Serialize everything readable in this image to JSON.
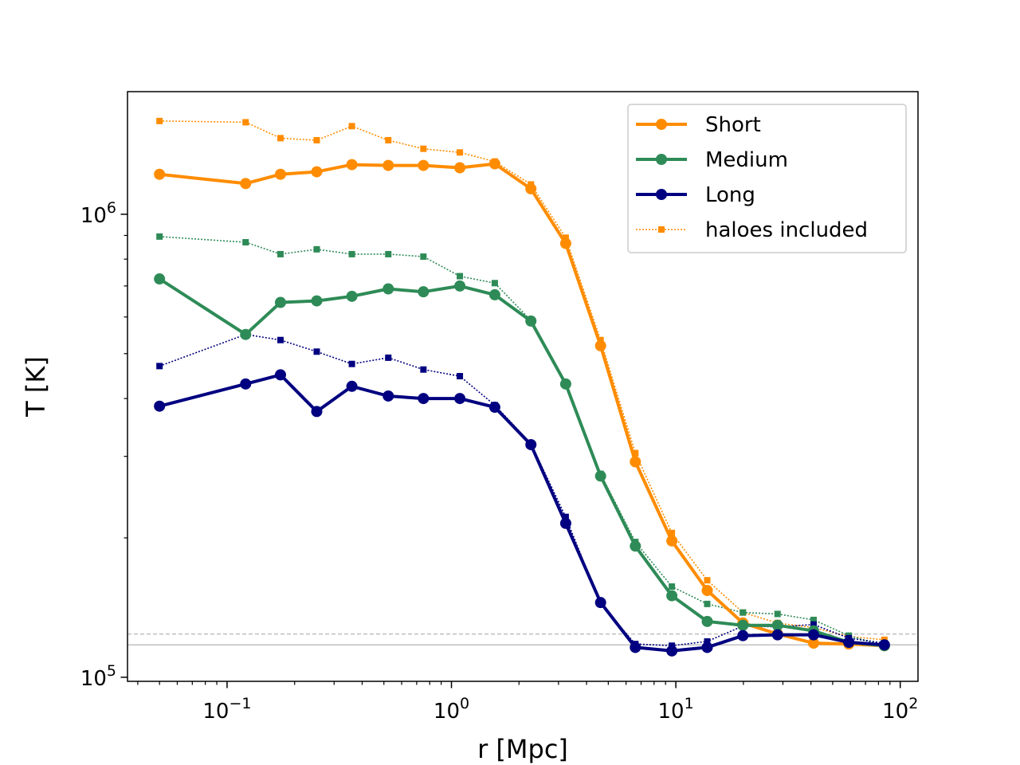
{
  "chart_data": {
    "type": "line",
    "title": "",
    "xlabel": "r [Mpc]",
    "ylabel": "T [K]",
    "xscale": "log",
    "yscale": "log",
    "xlim": [
      0.036,
      120
    ],
    "ylim": [
      98000,
      1840000
    ],
    "x_ticks": [
      {
        "value": 0.1,
        "base": "10",
        "exp": "−1"
      },
      {
        "value": 1,
        "base": "10",
        "exp": "0"
      },
      {
        "value": 10,
        "base": "10",
        "exp": "1"
      },
      {
        "value": 100,
        "base": "10",
        "exp": "2"
      }
    ],
    "y_ticks": [
      {
        "value": 100000,
        "base": "10",
        "exp": "5"
      },
      {
        "value": 1000000,
        "base": "10",
        "exp": "6"
      }
    ],
    "x": [
      0.05,
      0.121,
      0.173,
      0.251,
      0.36,
      0.523,
      0.75,
      1.09,
      1.56,
      2.26,
      3.23,
      4.62,
      6.6,
      9.6,
      13.8,
      19.9,
      28.4,
      41.1,
      59,
      85
    ],
    "series": [
      {
        "name": "Short",
        "style": "solid",
        "color": "#ff8c00",
        "values": [
          1220000,
          1165000,
          1220000,
          1235000,
          1280000,
          1275000,
          1275000,
          1260000,
          1285000,
          1135000,
          865000,
          520000,
          292000,
          197000,
          154000,
          131000,
          124000,
          118500,
          118000,
          117000
        ]
      },
      {
        "name": "Medium",
        "style": "solid",
        "color": "#2e8b57",
        "values": [
          725000,
          550000,
          645000,
          650000,
          665000,
          690000,
          680000,
          700000,
          670000,
          588000,
          430000,
          272000,
          192000,
          150000,
          132000,
          129500,
          129500,
          126000,
          119000,
          117000
        ]
      },
      {
        "name": "Long",
        "style": "solid",
        "color": "#000080",
        "values": [
          385000,
          430000,
          450000,
          375000,
          425000,
          405000,
          400000,
          400000,
          383000,
          318000,
          215000,
          145000,
          116000,
          114000,
          116000,
          123000,
          123500,
          123500,
          119000,
          117500
        ]
      },
      {
        "name": "Short (haloes included)",
        "style": "dotted",
        "color": "#ff8c00",
        "values": [
          1590000,
          1580000,
          1460000,
          1445000,
          1550000,
          1445000,
          1385000,
          1360000,
          1300000,
          1160000,
          890000,
          535000,
          305000,
          205000,
          162000,
          138000,
          131000,
          128000,
          122500,
          120500
        ]
      },
      {
        "name": "Medium (haloes included)",
        "style": "dotted",
        "color": "#2e8b57",
        "values": [
          895000,
          870000,
          820000,
          840000,
          820000,
          820000,
          810000,
          735000,
          710000,
          590000,
          430000,
          275000,
          196000,
          157000,
          144000,
          138000,
          137000,
          133000,
          123000,
          117000
        ]
      },
      {
        "name": "Long (haloes included)",
        "style": "dotted",
        "color": "#000080",
        "values": [
          470000,
          550000,
          535000,
          505000,
          475000,
          490000,
          462000,
          447000,
          387000,
          320000,
          222000,
          144000,
          118000,
          117000,
          119500,
          129000,
          128500,
          130000,
          121500,
          118500
        ]
      }
    ],
    "reference_lines": [
      {
        "y": 117500,
        "style": "solid",
        "color": "#bfbfbf"
      },
      {
        "y": 124000,
        "style": "dashed",
        "color": "#bfbfbf"
      }
    ],
    "legend": {
      "location": "top-right",
      "entries": [
        {
          "label": "Short",
          "color": "#ff8c00",
          "style": "solid"
        },
        {
          "label": "Medium",
          "color": "#2e8b57",
          "style": "solid"
        },
        {
          "label": "Long",
          "color": "#000080",
          "style": "solid"
        },
        {
          "label": "haloes included",
          "color": "#ff8c00",
          "style": "dotted"
        }
      ]
    }
  }
}
